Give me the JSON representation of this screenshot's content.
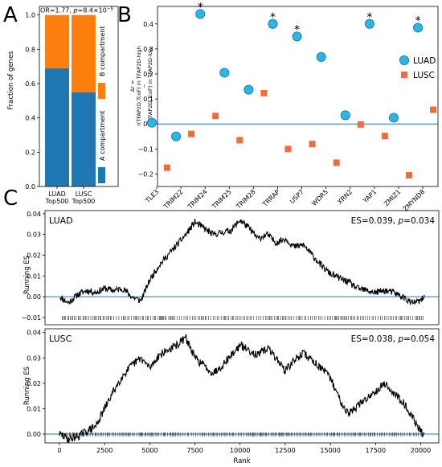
{
  "panel_letters": {
    "a": "A",
    "b": "B",
    "c": "C"
  },
  "colors": {
    "blue": "#1f77b4",
    "orange": "#ff7f0e",
    "luad_marker": "#29b6e8",
    "lusc_marker": "#f26b3a",
    "zero_line": "#1f77b4",
    "running": "#000000"
  },
  "panelA": {
    "annotation_pre": "OR=1.77, ",
    "annotation_p": "p",
    "annotation_eq": "=8.4×10",
    "annotation_exp": "−5"
  },
  "panelB": {
    "ylabel_lines": [
      "Δr =",
      "r(TFAP2D,TcoF) in TFAP2D-high",
      "−",
      "r(TFAP2D,TcoF) in TFAP2D-low"
    ],
    "ylabel_delta": "Δr =",
    "ylabel_high": "r(TFAP2D,TcoF) in TFAP2D-high",
    "ylabel_minus": "−",
    "ylabel_low": "r(TFAP2D,TcoF) in TFAP2D-low",
    "legend": {
      "luad": "LUAD",
      "lusc": "LUSC"
    },
    "star": "*"
  },
  "panelC": {
    "ylabel": "Running ES",
    "xlabel": "Rank",
    "luad_title": "LUAD",
    "lusc_title": "LUSC",
    "luad_es_pre": "ES=0.039, ",
    "luad_p": "p",
    "luad_es_post": "=0.034",
    "lusc_es_pre": "ES=0.038, ",
    "lusc_p": "p",
    "lusc_es_post": "=0.054"
  },
  "chart_data": [
    {
      "id": "A",
      "type": "bar",
      "stacked": true,
      "categories": [
        "LUAD\nTop500",
        "LUSC\nTop500"
      ],
      "category_lines": [
        [
          "LUAD",
          "Top500"
        ],
        [
          "LUSC",
          "Top500"
        ]
      ],
      "series": [
        {
          "name": "A compartment",
          "values": [
            0.69,
            0.55
          ],
          "color": "#1f77b4"
        },
        {
          "name": "B compartment",
          "values": [
            0.31,
            0.45
          ],
          "color": "#ff7f0e"
        }
      ],
      "ylabel": "Fraction of genes",
      "ylim": [
        0,
        1.0
      ],
      "yticks": [
        "0.0",
        "0.2",
        "0.4",
        "0.6",
        "0.8",
        "1.0"
      ],
      "ytick_values": [
        0,
        0.2,
        0.4,
        0.6,
        0.8,
        1.0
      ],
      "legend_placement": "right"
    },
    {
      "id": "B",
      "type": "scatter",
      "categories": [
        "TLE3",
        "TRIM22",
        "TRIM24",
        "TRIM25",
        "TRIM28",
        "TRRAP",
        "USP7",
        "WDR5",
        "XRN2",
        "YAP1",
        "ZMIZ1",
        "ZMYND8"
      ],
      "series": [
        {
          "name": "LUAD",
          "values": [
            0.005,
            -0.05,
            0.44,
            0.205,
            0.137,
            0.4,
            0.35,
            0.268,
            0.035,
            0.4,
            0.025,
            0.385
          ],
          "marker": "circle"
        },
        {
          "name": "LUSC",
          "values": [
            -0.175,
            -0.04,
            0.032,
            -0.065,
            0.123,
            -0.1,
            -0.08,
            -0.155,
            -0.002,
            -0.048,
            -0.205,
            0.057
          ],
          "marker": "square"
        }
      ],
      "significant": [
        "TRIM24",
        "TRRAP",
        "USP7",
        "YAP1",
        "ZMYND8"
      ],
      "ylim": [
        -0.25,
        0.47
      ],
      "yticks": [
        "−0.2",
        "−0.1",
        "0.0",
        "0.1",
        "0.2",
        "0.3",
        "0.4"
      ],
      "ytick_values": [
        -0.2,
        -0.1,
        0.0,
        0.1,
        0.2,
        0.3,
        0.4
      ],
      "zero_line": true,
      "legend_placement": "right"
    },
    {
      "id": "C-LUAD",
      "type": "line",
      "title": "LUAD",
      "x_range": [
        0,
        20200
      ],
      "xlim": [
        -800,
        21000
      ],
      "ylim": [
        -0.0135,
        0.0415
      ],
      "yticks": [
        "−0.01",
        "0.00",
        "0.01",
        "0.02",
        "0.03",
        "0.04"
      ],
      "ytick_values": [
        -0.01,
        0.0,
        0.01,
        0.02,
        0.03,
        0.04
      ],
      "anchors_x": [
        0,
        500,
        1000,
        1500,
        2000,
        2500,
        3000,
        3500,
        4000,
        4500,
        5000,
        5500,
        6000,
        6500,
        7000,
        7500,
        8000,
        8500,
        9000,
        9500,
        10000,
        10500,
        11000,
        11500,
        12000,
        12500,
        13000,
        13500,
        14000,
        14500,
        15000,
        15500,
        16000,
        16500,
        17000,
        17500,
        18000,
        18500,
        19000,
        19500,
        20000,
        20200
      ],
      "anchors_y": [
        0.0,
        -0.003,
        0.001,
        0.003,
        0.002,
        0.004,
        0.003,
        0.004,
        0.0,
        -0.002,
        0.008,
        0.015,
        0.02,
        0.025,
        0.03,
        0.036,
        0.033,
        0.03,
        0.031,
        0.032,
        0.037,
        0.033,
        0.028,
        0.03,
        0.026,
        0.028,
        0.024,
        0.025,
        0.02,
        0.015,
        0.011,
        0.009,
        0.007,
        0.004,
        0.003,
        0.002,
        0.003,
        0.002,
        0.0,
        -0.003,
        -0.002,
        0.0
      ],
      "hit_density": "uniform"
    },
    {
      "id": "C-LUSC",
      "type": "line",
      "title": "LUSC",
      "x_range": [
        0,
        20200
      ],
      "xlim": [
        -800,
        21000
      ],
      "xlabel": "Rank",
      "xticks": [
        "0",
        "2500",
        "5000",
        "7500",
        "10000",
        "12500",
        "15000",
        "17500",
        "20000"
      ],
      "xtick_values": [
        0,
        2500,
        5000,
        7500,
        10000,
        12500,
        15000,
        17500,
        20000
      ],
      "ylim": [
        -0.0035,
        0.0415
      ],
      "yticks": [
        "0.00",
        "0.01",
        "0.02",
        "0.03",
        "0.04"
      ],
      "ytick_values": [
        0.0,
        0.01,
        0.02,
        0.03,
        0.04
      ],
      "anchors_x": [
        0,
        500,
        1000,
        1500,
        2000,
        2500,
        3000,
        3500,
        4000,
        4500,
        5000,
        5500,
        6000,
        6500,
        7000,
        7500,
        8000,
        8500,
        9000,
        9500,
        10000,
        10500,
        11000,
        11500,
        12000,
        12500,
        13000,
        13500,
        14000,
        14500,
        15000,
        15500,
        16000,
        16500,
        17000,
        17500,
        18000,
        18500,
        19000,
        19500,
        20000,
        20200
      ],
      "anchors_y": [
        0.0,
        -0.002,
        -0.001,
        0.001,
        0.003,
        0.01,
        0.017,
        0.023,
        0.027,
        0.03,
        0.026,
        0.031,
        0.033,
        0.035,
        0.038,
        0.03,
        0.027,
        0.024,
        0.027,
        0.031,
        0.035,
        0.033,
        0.031,
        0.034,
        0.03,
        0.025,
        0.029,
        0.032,
        0.029,
        0.026,
        0.022,
        0.014,
        0.008,
        0.011,
        0.014,
        0.017,
        0.02,
        0.016,
        0.013,
        0.007,
        0.001,
        -0.001
      ],
      "hit_density": "uniform"
    }
  ]
}
